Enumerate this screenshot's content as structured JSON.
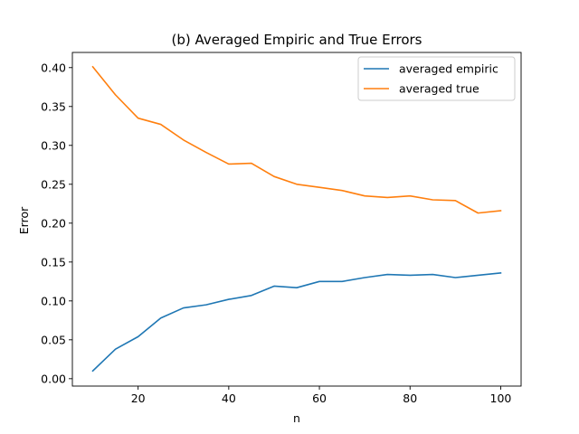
{
  "chart_data": {
    "type": "line",
    "title": "(b) Averaged Empiric and True Errors",
    "xlabel": "n",
    "ylabel": "Error",
    "xlim": [
      5.5,
      104.5
    ],
    "ylim": [
      -0.0095,
      0.4195
    ],
    "xticks": [
      20,
      40,
      60,
      80,
      100
    ],
    "yticks": [
      0.0,
      0.05,
      0.1,
      0.15,
      0.2,
      0.25,
      0.3,
      0.35,
      0.4
    ],
    "ytick_labels": [
      "0.00",
      "0.05",
      "0.10",
      "0.15",
      "0.20",
      "0.25",
      "0.30",
      "0.35",
      "0.40"
    ],
    "x": [
      10,
      15,
      20,
      25,
      30,
      35,
      40,
      45,
      50,
      55,
      60,
      65,
      70,
      75,
      80,
      85,
      90,
      95,
      100
    ],
    "series": [
      {
        "name": "averaged empiric",
        "color": "#1f77b4",
        "values": [
          0.01,
          0.038,
          0.054,
          0.078,
          0.091,
          0.095,
          0.102,
          0.107,
          0.119,
          0.117,
          0.125,
          0.125,
          0.13,
          0.134,
          0.133,
          0.134,
          0.13,
          0.133,
          0.136
        ]
      },
      {
        "name": "averaged true",
        "color": "#ff7f0e",
        "values": [
          0.401,
          0.365,
          0.335,
          0.327,
          0.307,
          0.291,
          0.276,
          0.277,
          0.26,
          0.25,
          0.246,
          0.242,
          0.235,
          0.233,
          0.235,
          0.23,
          0.229,
          0.213,
          0.216
        ]
      }
    ],
    "legend_position": "top-right",
    "grid": false
  }
}
